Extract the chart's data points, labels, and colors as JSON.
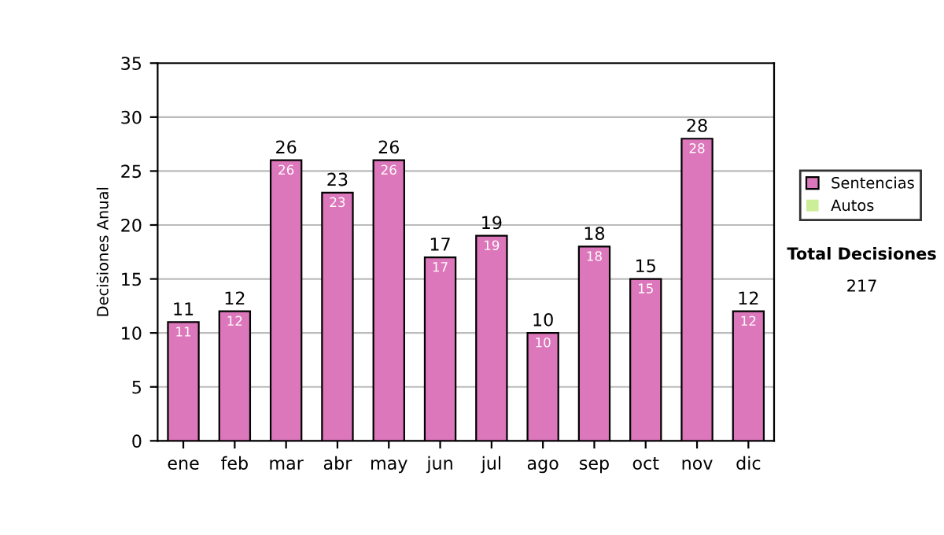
{
  "chart_data": {
    "type": "bar",
    "ylabel": "Decisiones Anual",
    "categories": [
      "ene",
      "feb",
      "mar",
      "abr",
      "may",
      "jun",
      "jul",
      "ago",
      "sep",
      "oct",
      "nov",
      "dic"
    ],
    "series": [
      {
        "name": "Sentencias",
        "color": "#dd77bb",
        "values": [
          11,
          12,
          26,
          23,
          26,
          17,
          19,
          10,
          18,
          15,
          28,
          12
        ],
        "value_labels": [
          "11",
          "12",
          "26",
          "23",
          "26",
          "17",
          "19",
          "10",
          "18",
          "15",
          "28",
          "12"
        ]
      },
      {
        "name": "Autos",
        "color": "#ccee99",
        "values": [
          0,
          0,
          0,
          0,
          0,
          0,
          0,
          0,
          0,
          0,
          0,
          0
        ]
      }
    ],
    "stacked": true,
    "totals": [
      "11",
      "12",
      "26",
      "23",
      "26",
      "17",
      "19",
      "10",
      "18",
      "15",
      "28",
      "12"
    ],
    "ylim": [
      0,
      35
    ],
    "yticks": [
      0,
      5,
      10,
      15,
      20,
      25,
      30,
      35
    ],
    "grid": "y",
    "legend": "right",
    "annotations": [
      "Total Decisiones",
      "217"
    ]
  }
}
